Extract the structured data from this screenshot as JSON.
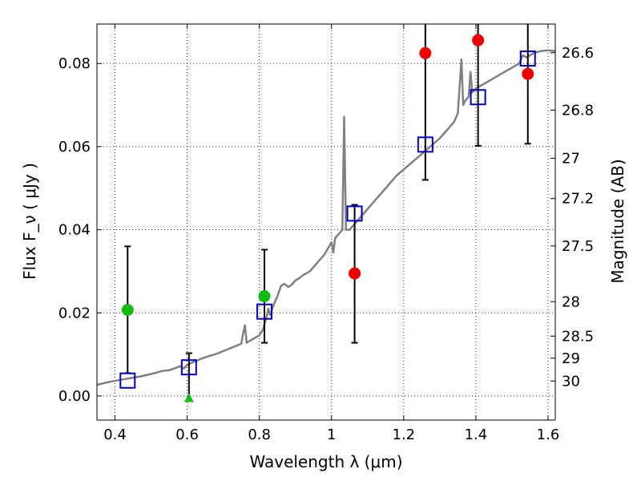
{
  "chart_data": {
    "type": "scatter",
    "xlabel": "Wavelength  λ (μm)",
    "ylabel": "Flux  F_ν  ( μJy )",
    "ylabel_right": "Magnitude (AB)",
    "xlim": [
      0.35,
      1.62
    ],
    "ylim": [
      -0.0058,
      0.0895
    ],
    "grid": true,
    "x_ticks": [
      0.4,
      0.6,
      0.8,
      1.0,
      1.2,
      1.4,
      1.6
    ],
    "x_tick_labels": [
      "0.4",
      "0.6",
      "0.8",
      "1",
      "1.2",
      "1.4",
      "1.6"
    ],
    "y_ticks": [
      0.0,
      0.02,
      0.04,
      0.06,
      0.08
    ],
    "y_tick_labels": [
      "0.00",
      "0.02",
      "0.04",
      "0.06",
      "0.08"
    ],
    "right_ticks": [
      {
        "label": "26.6",
        "flux": 0.0826
      },
      {
        "label": "26.8",
        "flux": 0.0688
      },
      {
        "label": "27",
        "flux": 0.0572
      },
      {
        "label": "27.2",
        "flux": 0.0475
      },
      {
        "label": "27.5",
        "flux": 0.0361
      },
      {
        "label": "28",
        "flux": 0.0227
      },
      {
        "label": "28.5",
        "flux": 0.0144
      },
      {
        "label": "29",
        "flux": 0.0091
      },
      {
        "label": "30",
        "flux": 0.0036
      }
    ],
    "series": [
      {
        "role": "model-spectrum",
        "color": "#808080",
        "points": [
          [
            0.35,
            0.0027
          ],
          [
            0.37,
            0.0031
          ],
          [
            0.39,
            0.0035
          ],
          [
            0.41,
            0.0038
          ],
          [
            0.43,
            0.0041
          ],
          [
            0.45,
            0.0044
          ],
          [
            0.47,
            0.0047
          ],
          [
            0.49,
            0.0051
          ],
          [
            0.51,
            0.0055
          ],
          [
            0.53,
            0.006
          ],
          [
            0.55,
            0.0062
          ],
          [
            0.57,
            0.0068
          ],
          [
            0.58,
            0.0072
          ],
          [
            0.59,
            0.0066
          ],
          [
            0.6,
            0.0075
          ],
          [
            0.61,
            0.0079
          ],
          [
            0.62,
            0.0083
          ],
          [
            0.63,
            0.0086
          ],
          [
            0.64,
            0.009
          ],
          [
            0.66,
            0.0096
          ],
          [
            0.68,
            0.0101
          ],
          [
            0.7,
            0.0108
          ],
          [
            0.72,
            0.0115
          ],
          [
            0.74,
            0.0122
          ],
          [
            0.75,
            0.0126
          ],
          [
            0.755,
            0.015
          ],
          [
            0.76,
            0.017
          ],
          [
            0.765,
            0.0128
          ],
          [
            0.78,
            0.0136
          ],
          [
            0.8,
            0.0146
          ],
          [
            0.81,
            0.016
          ],
          [
            0.82,
            0.019
          ],
          [
            0.825,
            0.021
          ],
          [
            0.83,
            0.0195
          ],
          [
            0.84,
            0.022
          ],
          [
            0.85,
            0.024
          ],
          [
            0.86,
            0.0265
          ],
          [
            0.87,
            0.027
          ],
          [
            0.88,
            0.0262
          ],
          [
            0.89,
            0.0268
          ],
          [
            0.9,
            0.0278
          ],
          [
            0.91,
            0.0283
          ],
          [
            0.92,
            0.029
          ],
          [
            0.94,
            0.03
          ],
          [
            0.96,
            0.032
          ],
          [
            0.98,
            0.034
          ],
          [
            0.99,
            0.0355
          ],
          [
            1.0,
            0.037
          ],
          [
            1.005,
            0.0345
          ],
          [
            1.01,
            0.038
          ],
          [
            1.02,
            0.039
          ],
          [
            1.03,
            0.04
          ],
          [
            1.035,
            0.0672
          ],
          [
            1.04,
            0.04
          ],
          [
            1.05,
            0.04
          ],
          [
            1.06,
            0.041
          ],
          [
            1.08,
            0.043
          ],
          [
            1.1,
            0.045
          ],
          [
            1.12,
            0.047
          ],
          [
            1.14,
            0.049
          ],
          [
            1.16,
            0.051
          ],
          [
            1.18,
            0.053
          ],
          [
            1.2,
            0.0545
          ],
          [
            1.22,
            0.056
          ],
          [
            1.24,
            0.0575
          ],
          [
            1.26,
            0.059
          ],
          [
            1.28,
            0.0605
          ],
          [
            1.3,
            0.062
          ],
          [
            1.32,
            0.064
          ],
          [
            1.34,
            0.066
          ],
          [
            1.35,
            0.068
          ],
          [
            1.36,
            0.081
          ],
          [
            1.365,
            0.07
          ],
          [
            1.37,
            0.071
          ],
          [
            1.38,
            0.072
          ],
          [
            1.385,
            0.078
          ],
          [
            1.39,
            0.073
          ],
          [
            1.4,
            0.074
          ],
          [
            1.42,
            0.075
          ],
          [
            1.44,
            0.076
          ],
          [
            1.46,
            0.077
          ],
          [
            1.48,
            0.078
          ],
          [
            1.5,
            0.079
          ],
          [
            1.52,
            0.08
          ],
          [
            1.53,
            0.082
          ],
          [
            1.54,
            0.0815
          ],
          [
            1.56,
            0.0825
          ],
          [
            1.58,
            0.083
          ],
          [
            1.6,
            0.0832
          ],
          [
            1.62,
            0.083
          ]
        ]
      },
      {
        "role": "synthetic-photometry",
        "marker": "open-square",
        "color": "#0000cc",
        "points": [
          [
            0.435,
            0.0037
          ],
          [
            0.605,
            0.0069
          ],
          [
            0.814,
            0.0203
          ],
          [
            1.064,
            0.0439
          ],
          [
            1.26,
            0.0605
          ],
          [
            1.406,
            0.0719
          ],
          [
            1.544,
            0.0812
          ]
        ]
      },
      {
        "role": "detections",
        "marker": "circle",
        "color": "#ee0000",
        "points": [
          [
            1.064,
            0.0295
          ],
          [
            1.26,
            0.0825
          ],
          [
            1.406,
            0.0856
          ],
          [
            1.544,
            0.0775
          ]
        ]
      },
      {
        "role": "low-significance",
        "marker": "circle",
        "color": "#11bb11",
        "points": [
          [
            0.435,
            0.0207
          ],
          [
            0.814,
            0.024
          ]
        ]
      },
      {
        "role": "non-detection",
        "marker": "triangle",
        "color": "#11bb11",
        "points": [
          [
            0.605,
            -0.0005
          ]
        ]
      }
    ],
    "error_bars": [
      {
        "x": 0.435,
        "low": 0.0055,
        "high": 0.036,
        "cap_low": true,
        "cap_high": true
      },
      {
        "x": 0.605,
        "low": 0.0,
        "high": 0.0103,
        "cap_low": false,
        "cap_high": true
      },
      {
        "x": 0.814,
        "low": 0.0128,
        "high": 0.0352,
        "cap_low": true,
        "cap_high": true
      },
      {
        "x": 1.064,
        "low": 0.0128,
        "high": 0.046,
        "cap_low": true,
        "cap_high": true
      },
      {
        "x": 1.26,
        "low": 0.052,
        "high": 0.0895,
        "cap_low": true,
        "cap_high": false
      },
      {
        "x": 1.406,
        "low": 0.0602,
        "high": 0.0895,
        "cap_low": true,
        "cap_high": false
      },
      {
        "x": 1.544,
        "low": 0.0607,
        "high": 0.0895,
        "cap_low": true,
        "cap_high": false
      }
    ]
  }
}
